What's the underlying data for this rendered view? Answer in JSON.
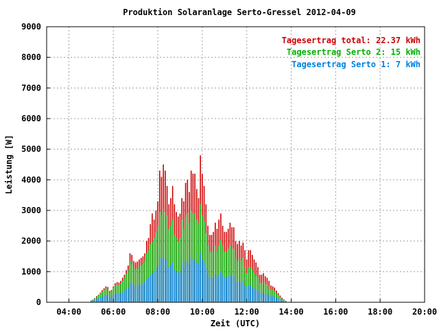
{
  "chart_data": {
    "type": "bar",
    "stacked": true,
    "title": "Produktion Solaranlage Serto-Gressel 2012-04-09",
    "xlabel": "Zeit (UTC)",
    "ylabel": "Leistung [W]",
    "ylim": [
      0,
      9000
    ],
    "yticks": [
      "0",
      "1000",
      "2000",
      "3000",
      "4000",
      "5000",
      "6000",
      "7000",
      "8000",
      "9000"
    ],
    "xlim_hours": [
      3,
      20
    ],
    "xticks": [
      {
        "label": "04:00",
        "h": 4
      },
      {
        "label": "06:00",
        "h": 6
      },
      {
        "label": "08:00",
        "h": 8
      },
      {
        "label": "10:00",
        "h": 10
      },
      {
        "label": "12:00",
        "h": 12
      },
      {
        "label": "14:00",
        "h": 14
      },
      {
        "label": "16:00",
        "h": 16
      },
      {
        "label": "18:00",
        "h": 18
      },
      {
        "label": "20:00",
        "h": 20
      }
    ],
    "grid": true,
    "legend_position": "top-right",
    "legend": [
      {
        "text": "Tagesertrag total: 22.37 kWh",
        "color": "#cc0000"
      },
      {
        "text": "Tagesertrag Serto 2: 15 kWh",
        "color": "#00b000"
      },
      {
        "text": "Tagesertrag Serto 1: 7 kWh",
        "color": "#0080e0"
      }
    ],
    "colors": {
      "total": "#cc0000",
      "serto2": "#00b000",
      "serto1": "#0080e0"
    },
    "interval_minutes": 5,
    "start": "05:00",
    "series": [
      {
        "name": "Serto 1",
        "color": "#0080e0",
        "values": [
          30,
          50,
          70,
          100,
          130,
          160,
          190,
          210,
          230,
          220,
          160,
          180,
          230,
          270,
          280,
          270,
          300,
          330,
          380,
          450,
          500,
          650,
          600,
          550,
          520,
          540,
          560,
          580,
          600,
          650,
          750,
          800,
          900,
          950,
          1000,
          1100,
          1200,
          1450,
          1400,
          1500,
          1450,
          1380,
          1150,
          1200,
          1300,
          1050,
          1000,
          950,
          1000,
          1300,
          1150,
          1350,
          1400,
          1250,
          1450,
          1400,
          1400,
          1300,
          1250,
          1600,
          1400,
          1300,
          1100,
          900,
          800,
          800,
          800,
          900,
          800,
          900,
          1000,
          900,
          800,
          800,
          850,
          900,
          850,
          850,
          700,
          650,
          700,
          650,
          700,
          550,
          450,
          550,
          550,
          500,
          450,
          400,
          380,
          300,
          300,
          330,
          300,
          280,
          250,
          200,
          200,
          180,
          140,
          120,
          80,
          60,
          40,
          20
        ]
      },
      {
        "name": "Serto 2",
        "color": "#00b000",
        "values": [
          20,
          30,
          60,
          80,
          110,
          140,
          170,
          200,
          230,
          220,
          160,
          180,
          250,
          290,
          300,
          290,
          320,
          360,
          420,
          500,
          550,
          700,
          650,
          580,
          550,
          580,
          600,
          620,
          650,
          700,
          850,
          900,
          1000,
          1050,
          1100,
          1200,
          1300,
          1500,
          1450,
          1550,
          1500,
          1450,
          1250,
          1300,
          1400,
          1150,
          1100,
          1050,
          1100,
          1400,
          1250,
          1450,
          1500,
          1350,
          1550,
          1500,
          1500,
          1400,
          1350,
          1600,
          1450,
          1350,
          1150,
          950,
          850,
          850,
          850,
          950,
          850,
          950,
          1050,
          950,
          850,
          850,
          900,
          950,
          900,
          900,
          750,
          700,
          750,
          700,
          750,
          600,
          500,
          600,
          600,
          550,
          500,
          450,
          420,
          330,
          330,
          350,
          320,
          300,
          270,
          220,
          210,
          190,
          150,
          120,
          90,
          60,
          40,
          20
        ]
      },
      {
        "name": "total",
        "color": "#cc0000",
        "values": [
          60,
          90,
          140,
          200,
          250,
          320,
          400,
          460,
          520,
          500,
          370,
          400,
          520,
          620,
          660,
          640,
          700,
          800,
          900,
          1050,
          1200,
          1600,
          1550,
          1350,
          1300,
          1330,
          1400,
          1450,
          1500,
          1600,
          2000,
          2100,
          2550,
          2900,
          2700,
          3000,
          3300,
          4300,
          4100,
          4500,
          4300,
          3800,
          3200,
          3400,
          3800,
          3200,
          2950,
          2800,
          2900,
          3400,
          3300,
          3900,
          4000,
          3600,
          4300,
          4200,
          4200,
          3700,
          3400,
          4800,
          4200,
          3800,
          3200,
          2500,
          2200,
          2200,
          2300,
          2600,
          2400,
          2700,
          2900,
          2500,
          2300,
          2300,
          2400,
          2600,
          2450,
          2450,
          2000,
          1900,
          2000,
          1850,
          1950,
          1700,
          1400,
          1700,
          1700,
          1550,
          1400,
          1300,
          1150,
          900,
          900,
          950,
          850,
          800,
          700,
          550,
          520,
          480,
          380,
          300,
          220,
          150,
          100,
          50
        ]
      }
    ]
  }
}
